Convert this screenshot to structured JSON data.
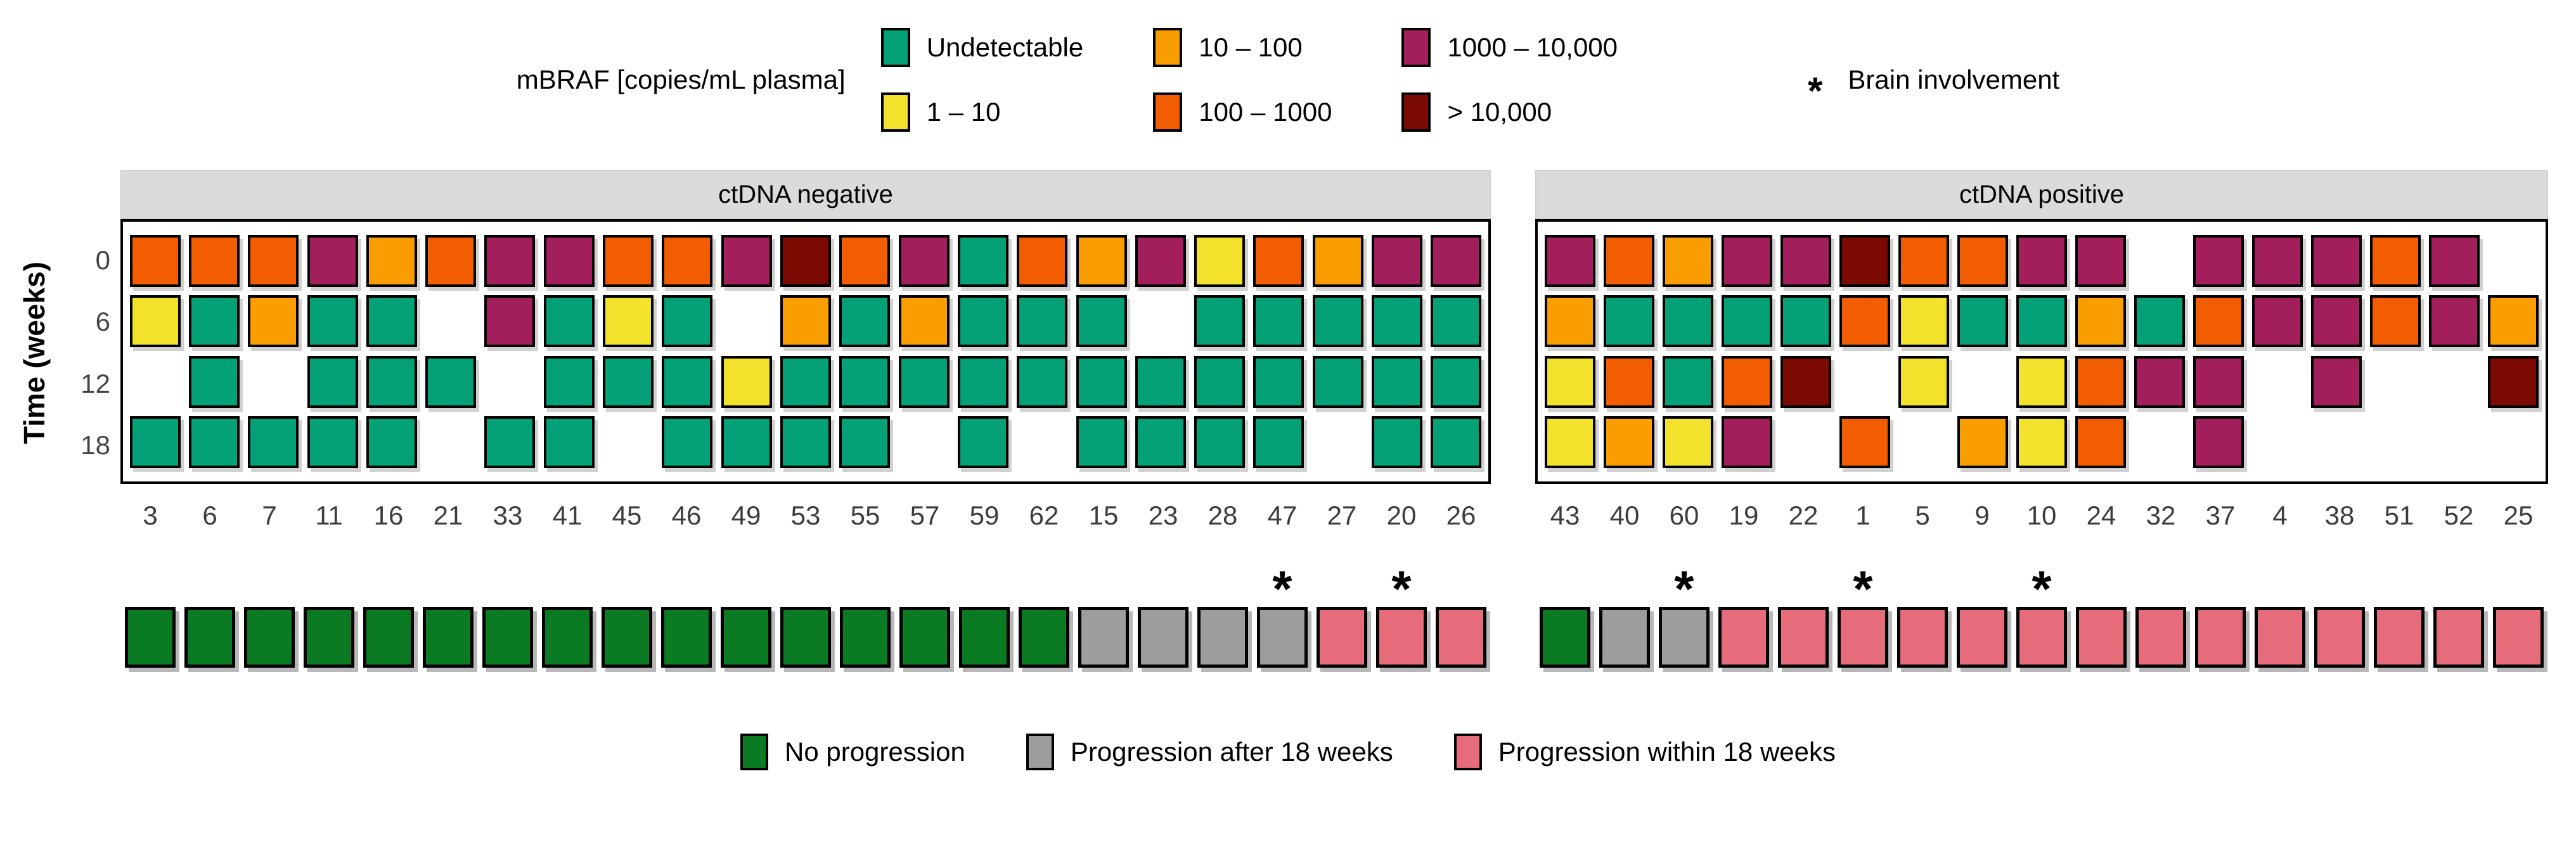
{
  "legend_top": {
    "title": "mBRAF [copies/mL plasma]",
    "order": [
      "U",
      "Y",
      "A",
      "O",
      "M",
      "D"
    ],
    "brain_symbol": "*",
    "brain_label": "Brain involvement"
  },
  "axis": {
    "ylabel": "Time (weeks)",
    "yticks": [
      "0",
      "6",
      "12",
      "18"
    ]
  },
  "legend_bottom": {
    "order": [
      "none",
      "after",
      "within"
    ]
  },
  "chart_data": {
    "type": "heatmap",
    "unit": "mBRAF copies/mL plasma",
    "weeks": [
      "0",
      "6",
      "12",
      "18"
    ],
    "levels": {
      "U": {
        "label": "Undetectable",
        "color": "#04A177"
      },
      "Y": {
        "label": "1 – 10",
        "color": "#F3E22C"
      },
      "A": {
        "label": "10 – 100",
        "color": "#FA9E00"
      },
      "O": {
        "label": "100 – 1000",
        "color": "#F25D02"
      },
      "M": {
        "label": "1000 – 10,000",
        "color": "#A21F5C"
      },
      "D": {
        "label": "> 10,000",
        "color": "#7B0A02"
      }
    },
    "outcomes": {
      "none": {
        "label": "No progression",
        "color": "#0A7A23"
      },
      "after": {
        "label": "Progression after 18 weeks",
        "color": "#9D9D9D"
      },
      "within": {
        "label": "Progression within 18 weeks",
        "color": "#E66C7B"
      }
    },
    "panels": [
      {
        "label": "ctDNA negative",
        "patients": [
          {
            "id": "3",
            "weeks": [
              "O",
              "Y",
              null,
              "U"
            ],
            "outcome": "none",
            "brain": false
          },
          {
            "id": "6",
            "weeks": [
              "O",
              "U",
              "U",
              "U"
            ],
            "outcome": "none",
            "brain": false
          },
          {
            "id": "7",
            "weeks": [
              "O",
              "A",
              null,
              "U"
            ],
            "outcome": "none",
            "brain": false
          },
          {
            "id": "11",
            "weeks": [
              "M",
              "U",
              "U",
              "U"
            ],
            "outcome": "none",
            "brain": false
          },
          {
            "id": "16",
            "weeks": [
              "A",
              "U",
              "U",
              "U"
            ],
            "outcome": "none",
            "brain": false
          },
          {
            "id": "21",
            "weeks": [
              "O",
              null,
              "U",
              null
            ],
            "outcome": "none",
            "brain": false
          },
          {
            "id": "33",
            "weeks": [
              "M",
              "M",
              null,
              "U"
            ],
            "outcome": "none",
            "brain": false
          },
          {
            "id": "41",
            "weeks": [
              "M",
              "U",
              "U",
              "U"
            ],
            "outcome": "none",
            "brain": false
          },
          {
            "id": "45",
            "weeks": [
              "O",
              "Y",
              "U",
              null
            ],
            "outcome": "none",
            "brain": false
          },
          {
            "id": "46",
            "weeks": [
              "O",
              "U",
              "U",
              "U"
            ],
            "outcome": "none",
            "brain": false
          },
          {
            "id": "49",
            "weeks": [
              "M",
              null,
              "Y",
              "U"
            ],
            "outcome": "none",
            "brain": false
          },
          {
            "id": "53",
            "weeks": [
              "D",
              "A",
              "U",
              "U"
            ],
            "outcome": "none",
            "brain": false
          },
          {
            "id": "55",
            "weeks": [
              "O",
              "U",
              "U",
              "U"
            ],
            "outcome": "none",
            "brain": false
          },
          {
            "id": "57",
            "weeks": [
              "M",
              "A",
              "U",
              null
            ],
            "outcome": "none",
            "brain": false
          },
          {
            "id": "59",
            "weeks": [
              "U",
              "U",
              "U",
              "U"
            ],
            "outcome": "none",
            "brain": false
          },
          {
            "id": "62",
            "weeks": [
              "O",
              "U",
              "U",
              null
            ],
            "outcome": "none",
            "brain": false
          },
          {
            "id": "15",
            "weeks": [
              "A",
              "U",
              "U",
              "U"
            ],
            "outcome": "after",
            "brain": false
          },
          {
            "id": "23",
            "weeks": [
              "M",
              null,
              "U",
              "U"
            ],
            "outcome": "after",
            "brain": false
          },
          {
            "id": "28",
            "weeks": [
              "Y",
              "U",
              "U",
              "U"
            ],
            "outcome": "after",
            "brain": false
          },
          {
            "id": "47",
            "weeks": [
              "O",
              "U",
              "U",
              "U"
            ],
            "outcome": "after",
            "brain": true
          },
          {
            "id": "27",
            "weeks": [
              "A",
              "U",
              "U",
              null
            ],
            "outcome": "within",
            "brain": false
          },
          {
            "id": "20",
            "weeks": [
              "M",
              "U",
              "U",
              "U"
            ],
            "outcome": "within",
            "brain": true
          },
          {
            "id": "26",
            "weeks": [
              "M",
              "U",
              "U",
              "U"
            ],
            "outcome": "within",
            "brain": false
          }
        ]
      },
      {
        "label": "ctDNA positive",
        "patients": [
          {
            "id": "43",
            "weeks": [
              "M",
              "A",
              "Y",
              "Y"
            ],
            "outcome": "none",
            "brain": false
          },
          {
            "id": "40",
            "weeks": [
              "O",
              "U",
              "O",
              "A"
            ],
            "outcome": "after",
            "brain": false
          },
          {
            "id": "60",
            "weeks": [
              "A",
              "U",
              "U",
              "Y"
            ],
            "outcome": "after",
            "brain": true
          },
          {
            "id": "19",
            "weeks": [
              "M",
              "U",
              "O",
              "M"
            ],
            "outcome": "within",
            "brain": false
          },
          {
            "id": "22",
            "weeks": [
              "M",
              "U",
              "D",
              null
            ],
            "outcome": "within",
            "brain": false
          },
          {
            "id": "1",
            "weeks": [
              "D",
              "O",
              null,
              "O"
            ],
            "outcome": "within",
            "brain": true
          },
          {
            "id": "5",
            "weeks": [
              "O",
              "Y",
              "Y",
              null
            ],
            "outcome": "within",
            "brain": false
          },
          {
            "id": "9",
            "weeks": [
              "O",
              "U",
              null,
              "A"
            ],
            "outcome": "within",
            "brain": false
          },
          {
            "id": "10",
            "weeks": [
              "M",
              "U",
              "Y",
              "Y"
            ],
            "outcome": "within",
            "brain": true
          },
          {
            "id": "24",
            "weeks": [
              "M",
              "A",
              "O",
              "O"
            ],
            "outcome": "within",
            "brain": false
          },
          {
            "id": "32",
            "weeks": [
              null,
              "U",
              "M",
              null
            ],
            "outcome": "within",
            "brain": false
          },
          {
            "id": "37",
            "weeks": [
              "M",
              "O",
              "M",
              "M"
            ],
            "outcome": "within",
            "brain": false
          },
          {
            "id": "4",
            "weeks": [
              "M",
              "M",
              null,
              null
            ],
            "outcome": "within",
            "brain": false
          },
          {
            "id": "38",
            "weeks": [
              "M",
              "M",
              "M",
              null
            ],
            "outcome": "within",
            "brain": false
          },
          {
            "id": "51",
            "weeks": [
              "O",
              "O",
              null,
              null
            ],
            "outcome": "within",
            "brain": false
          },
          {
            "id": "52",
            "weeks": [
              "M",
              "M",
              null,
              null
            ],
            "outcome": "within",
            "brain": false
          },
          {
            "id": "25",
            "weeks": [
              null,
              "A",
              "D",
              null
            ],
            "outcome": "within",
            "brain": false
          }
        ]
      }
    ]
  }
}
